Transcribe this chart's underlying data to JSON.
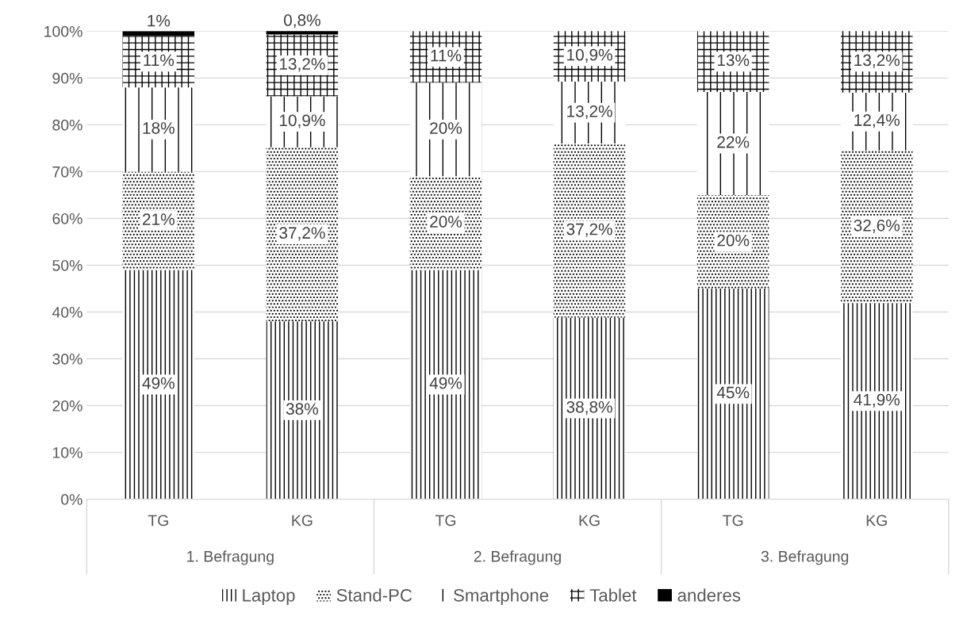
{
  "chart_data": {
    "type": "bar",
    "stacked": true,
    "categories": [
      "TG",
      "KG",
      "TG",
      "KG",
      "TG",
      "KG"
    ],
    "annotations": [
      "1. Befragung",
      "2. Befragung",
      "3. Befragung"
    ],
    "series": [
      {
        "name": "Laptop",
        "color": "#000000",
        "values": [
          49,
          38,
          49,
          38.8,
          45,
          41.9
        ],
        "value_labels": [
          "49%",
          "38%",
          "49%",
          "38,8%",
          "45%",
          "41,9%"
        ]
      },
      {
        "name": "Stand-PC",
        "color": "#000000",
        "values": [
          21,
          37.2,
          20,
          37.2,
          20,
          32.6
        ],
        "value_labels": [
          "21%",
          "37,2%",
          "20%",
          "37,2%",
          "20%",
          "32,6%"
        ]
      },
      {
        "name": "Smartphone",
        "color": "#000000",
        "values": [
          18,
          10.9,
          20,
          13.2,
          22,
          12.4
        ],
        "value_labels": [
          "18%",
          "10,9%",
          "20%",
          "13,2%",
          "22%",
          "12,4%"
        ]
      },
      {
        "name": "Tablet",
        "color": "#000000",
        "values": [
          11,
          13.2,
          11,
          10.9,
          13,
          13.2
        ],
        "value_labels": [
          "11%",
          "13,2%",
          "11%",
          "10,9%",
          "13%",
          "13,2%"
        ]
      },
      {
        "name": "anderes",
        "color": "#000000",
        "values": [
          1,
          0.8,
          null,
          null,
          null,
          null
        ],
        "value_labels": [
          "1%",
          "0,8%",
          null,
          null,
          null,
          null
        ]
      }
    ],
    "ylim": [
      0,
      100
    ],
    "yticks": [
      {
        "value": 0,
        "label": "0%"
      },
      {
        "value": 10,
        "label": "10%"
      },
      {
        "value": 20,
        "label": "20%"
      },
      {
        "value": 30,
        "label": "30%"
      },
      {
        "value": 40,
        "label": "40%"
      },
      {
        "value": 50,
        "label": "50%"
      },
      {
        "value": 60,
        "label": "60%"
      },
      {
        "value": 70,
        "label": "70%"
      },
      {
        "value": 80,
        "label": "80%"
      },
      {
        "value": 90,
        "label": "90%"
      },
      {
        "value": 100,
        "label": "100%"
      }
    ],
    "grid": "y",
    "legend": "bottom"
  }
}
